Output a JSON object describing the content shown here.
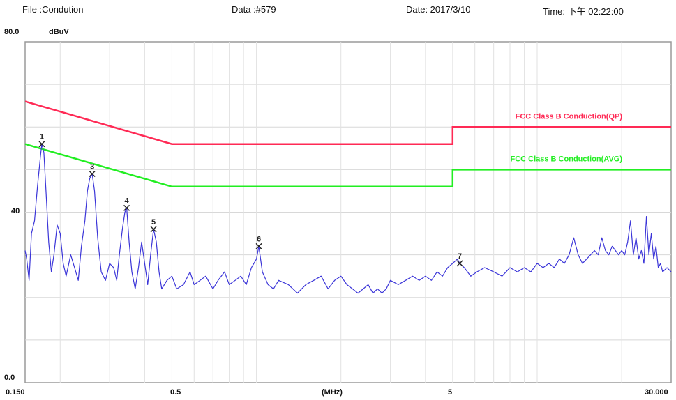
{
  "header": {
    "file": "File :Condution",
    "data": "Data :#579",
    "date": "Date: 2017/3/10",
    "time": "Time: 下午 02:22:00"
  },
  "chart_data": {
    "type": "line",
    "x_scale": "log",
    "xlim": [
      0.15,
      30
    ],
    "ylim": [
      0,
      80
    ],
    "ylabel_unit": "dBuV",
    "xlabel": "(MHz)",
    "y_tick_labels": [
      "80.0",
      "40",
      "0.0"
    ],
    "x_tick_labels": [
      "0.150",
      "0.5",
      "(MHz)",
      "5",
      "30.000"
    ],
    "grid": true,
    "limit_lines": [
      {
        "name": "FCC Class B Conduction(QP)",
        "color": "#ff2a55",
        "points": [
          [
            0.15,
            66
          ],
          [
            0.5,
            56
          ],
          [
            5,
            56
          ],
          [
            5,
            60
          ],
          [
            30,
            60
          ]
        ]
      },
      {
        "name": "FCC Class B Conduction(AVG)",
        "color": "#22ee22",
        "points": [
          [
            0.15,
            56
          ],
          [
            0.5,
            46
          ],
          [
            5,
            46
          ],
          [
            5,
            50
          ],
          [
            30,
            50
          ]
        ]
      }
    ],
    "markers": [
      {
        "label": "1",
        "x": 0.172,
        "y": 56
      },
      {
        "label": "3",
        "x": 0.26,
        "y": 49
      },
      {
        "label": "4",
        "x": 0.345,
        "y": 41
      },
      {
        "label": "5",
        "x": 0.43,
        "y": 36
      },
      {
        "label": "6",
        "x": 1.02,
        "y": 32
      },
      {
        "label": "7",
        "x": 5.3,
        "y": 28
      }
    ],
    "trace": {
      "color": "#3b35d8",
      "points": [
        [
          0.15,
          31
        ],
        [
          0.152,
          29
        ],
        [
          0.155,
          24
        ],
        [
          0.158,
          35
        ],
        [
          0.162,
          38
        ],
        [
          0.166,
          46
        ],
        [
          0.17,
          53
        ],
        [
          0.172,
          56
        ],
        [
          0.175,
          54
        ],
        [
          0.178,
          45
        ],
        [
          0.182,
          33
        ],
        [
          0.186,
          26
        ],
        [
          0.19,
          30
        ],
        [
          0.195,
          37
        ],
        [
          0.2,
          35
        ],
        [
          0.205,
          28
        ],
        [
          0.21,
          25
        ],
        [
          0.218,
          30
        ],
        [
          0.225,
          27
        ],
        [
          0.232,
          24
        ],
        [
          0.238,
          32
        ],
        [
          0.245,
          38
        ],
        [
          0.25,
          45
        ],
        [
          0.255,
          48
        ],
        [
          0.26,
          49
        ],
        [
          0.265,
          45
        ],
        [
          0.272,
          34
        ],
        [
          0.28,
          26
        ],
        [
          0.29,
          24
        ],
        [
          0.3,
          28
        ],
        [
          0.31,
          27
        ],
        [
          0.318,
          24
        ],
        [
          0.325,
          30
        ],
        [
          0.333,
          36
        ],
        [
          0.34,
          40
        ],
        [
          0.345,
          41
        ],
        [
          0.352,
          33
        ],
        [
          0.36,
          26
        ],
        [
          0.37,
          22
        ],
        [
          0.38,
          27
        ],
        [
          0.39,
          33
        ],
        [
          0.4,
          28
        ],
        [
          0.41,
          23
        ],
        [
          0.42,
          30
        ],
        [
          0.43,
          36
        ],
        [
          0.44,
          33
        ],
        [
          0.45,
          26
        ],
        [
          0.46,
          22
        ],
        [
          0.48,
          24
        ],
        [
          0.5,
          25
        ],
        [
          0.52,
          22
        ],
        [
          0.55,
          23
        ],
        [
          0.58,
          26
        ],
        [
          0.6,
          23
        ],
        [
          0.63,
          24
        ],
        [
          0.66,
          25
        ],
        [
          0.7,
          22
        ],
        [
          0.73,
          24
        ],
        [
          0.77,
          26
        ],
        [
          0.8,
          23
        ],
        [
          0.84,
          24
        ],
        [
          0.88,
          25
        ],
        [
          0.92,
          23
        ],
        [
          0.96,
          27
        ],
        [
          1.0,
          29
        ],
        [
          1.02,
          32
        ],
        [
          1.05,
          26
        ],
        [
          1.1,
          23
        ],
        [
          1.15,
          22
        ],
        [
          1.2,
          24
        ],
        [
          1.3,
          23
        ],
        [
          1.4,
          21
        ],
        [
          1.5,
          23
        ],
        [
          1.6,
          24
        ],
        [
          1.7,
          25
        ],
        [
          1.8,
          22
        ],
        [
          1.9,
          24
        ],
        [
          2.0,
          25
        ],
        [
          2.1,
          23
        ],
        [
          2.2,
          22
        ],
        [
          2.3,
          21
        ],
        [
          2.4,
          22
        ],
        [
          2.5,
          23
        ],
        [
          2.6,
          21
        ],
        [
          2.7,
          22
        ],
        [
          2.8,
          21
        ],
        [
          2.9,
          22
        ],
        [
          3.0,
          24
        ],
        [
          3.2,
          23
        ],
        [
          3.4,
          24
        ],
        [
          3.6,
          25
        ],
        [
          3.8,
          24
        ],
        [
          4.0,
          25
        ],
        [
          4.2,
          24
        ],
        [
          4.4,
          26
        ],
        [
          4.6,
          25
        ],
        [
          4.8,
          27
        ],
        [
          5.0,
          28
        ],
        [
          5.2,
          29
        ],
        [
          5.3,
          28
        ],
        [
          5.5,
          27
        ],
        [
          5.8,
          25
        ],
        [
          6.1,
          26
        ],
        [
          6.5,
          27
        ],
        [
          7.0,
          26
        ],
        [
          7.5,
          25
        ],
        [
          8.0,
          27
        ],
        [
          8.5,
          26
        ],
        [
          9.0,
          27
        ],
        [
          9.5,
          26
        ],
        [
          10,
          28
        ],
        [
          10.5,
          27
        ],
        [
          11,
          28
        ],
        [
          11.5,
          27
        ],
        [
          12,
          29
        ],
        [
          12.5,
          28
        ],
        [
          13,
          30
        ],
        [
          13.5,
          34
        ],
        [
          14,
          30
        ],
        [
          14.5,
          28
        ],
        [
          15,
          29
        ],
        [
          15.5,
          30
        ],
        [
          16,
          31
        ],
        [
          16.5,
          30
        ],
        [
          17,
          34
        ],
        [
          17.5,
          31
        ],
        [
          18,
          30
        ],
        [
          18.5,
          32
        ],
        [
          19,
          31
        ],
        [
          19.5,
          30
        ],
        [
          20,
          31
        ],
        [
          20.5,
          30
        ],
        [
          21,
          33
        ],
        [
          21.5,
          38
        ],
        [
          22,
          30
        ],
        [
          22.5,
          34
        ],
        [
          23,
          29
        ],
        [
          23.5,
          31
        ],
        [
          24,
          28
        ],
        [
          24.5,
          39
        ],
        [
          25,
          30
        ],
        [
          25.5,
          35
        ],
        [
          26,
          29
        ],
        [
          26.5,
          32
        ],
        [
          27,
          27
        ],
        [
          27.5,
          28
        ],
        [
          28,
          26
        ],
        [
          29,
          27
        ],
        [
          30,
          26
        ]
      ]
    }
  }
}
